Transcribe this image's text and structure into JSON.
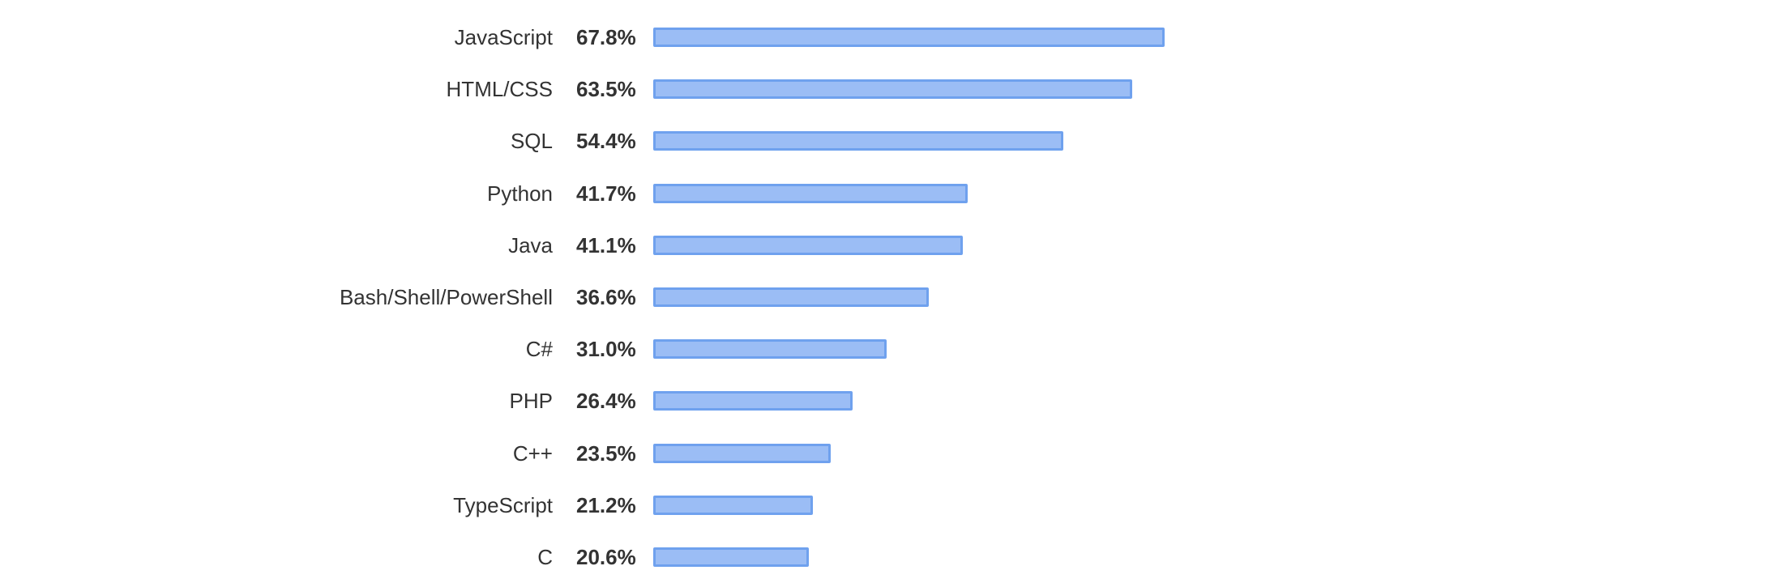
{
  "chart_data": {
    "type": "bar",
    "orientation": "horizontal",
    "categories": [
      "JavaScript",
      "HTML/CSS",
      "SQL",
      "Python",
      "Java",
      "Bash/Shell/PowerShell",
      "C#",
      "PHP",
      "C++",
      "TypeScript",
      "C"
    ],
    "values": [
      67.8,
      63.5,
      54.4,
      41.7,
      41.1,
      36.6,
      31.0,
      26.4,
      23.5,
      21.2,
      20.6
    ],
    "value_labels": [
      "67.8%",
      "63.5%",
      "54.4%",
      "41.7%",
      "41.1%",
      "36.6%",
      "31.0%",
      "26.4%",
      "23.5%",
      "21.2%",
      "20.6%"
    ],
    "unit": "%",
    "xlim": [
      0,
      100
    ],
    "grid": false,
    "legend": "none",
    "bar_fill": "#9bbdf5",
    "bar_border": "#6fa1ee",
    "text_color": "#333333"
  }
}
